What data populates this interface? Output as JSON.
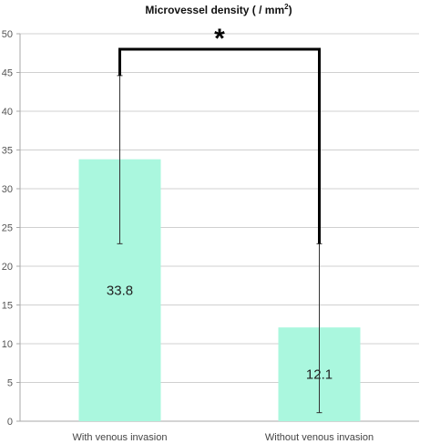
{
  "chart_data": {
    "type": "bar",
    "title_main": "Microvessel density ( / mm",
    "title_sup": "2",
    "title_close": ")",
    "categories": [
      "With venous invasion",
      "Without venous invasion"
    ],
    "values": [
      33.8,
      12.1
    ],
    "data_labels": [
      "33.8",
      "12.1"
    ],
    "error_bars": [
      {
        "low": 22.9,
        "high": 44.6
      },
      {
        "low": 1.1,
        "high": 22.9
      }
    ],
    "ylim": [
      0,
      50
    ],
    "yticks": [
      0,
      5,
      10,
      15,
      20,
      25,
      30,
      35,
      40,
      45,
      50
    ],
    "grid": true,
    "significance": {
      "marker": "*",
      "between": [
        0,
        1
      ],
      "level": 48
    }
  },
  "colors": {
    "bar": "#aaf7de",
    "grid": "#d0d0d0",
    "axis": "#a8a8a8",
    "bracket": "#000000",
    "error_bar": "#333333"
  }
}
